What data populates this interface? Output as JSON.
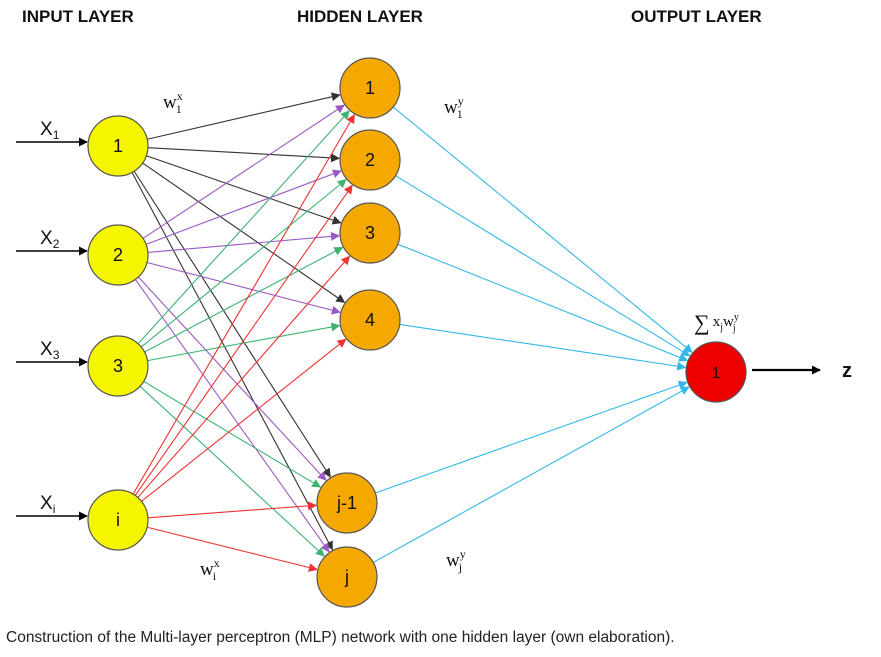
{
  "layers": {
    "input_title": "INPUT LAYER",
    "hidden_title": "HIDDEN LAYER",
    "output_title": "OUTPUT LAYER"
  },
  "input_nodes": [
    {
      "label": "1",
      "input": "X",
      "sub": "1"
    },
    {
      "label": "2",
      "input": "X",
      "sub": "2"
    },
    {
      "label": "3",
      "input": "X",
      "sub": "3"
    },
    {
      "label": "i",
      "input": "X",
      "sub": "i"
    }
  ],
  "hidden_nodes": [
    "1",
    "2",
    "3",
    "4",
    "j-1",
    "j"
  ],
  "output_node": "1",
  "output_label": "z",
  "weights": {
    "w1x": {
      "base": "w",
      "sub": "1",
      "sup": "x"
    },
    "wix": {
      "base": "w",
      "sub": "i",
      "sup": "x"
    },
    "w1y": {
      "base": "w",
      "sub": "1",
      "sup": "y"
    },
    "wjy": {
      "base": "w",
      "sub": "j",
      "sup": "y"
    }
  },
  "sum_formula": {
    "sym": "∑",
    "x": "x",
    "x_sub": "j",
    "w": "w",
    "w_sub": "j",
    "w_sup": "y"
  },
  "caption": "Construction of the Multi-layer perceptron (MLP) network with one hidden layer (own elaboration).",
  "colors": {
    "input_fill": "#f5f500",
    "hidden_fill": "#f5a800",
    "output_fill": "#ee0000",
    "node1_edges": "#333333",
    "node2_edges": "#9b59c6",
    "node3_edges": "#3cb371",
    "nodei_edges": "#ee3333",
    "output_edges": "#33b8e8"
  }
}
